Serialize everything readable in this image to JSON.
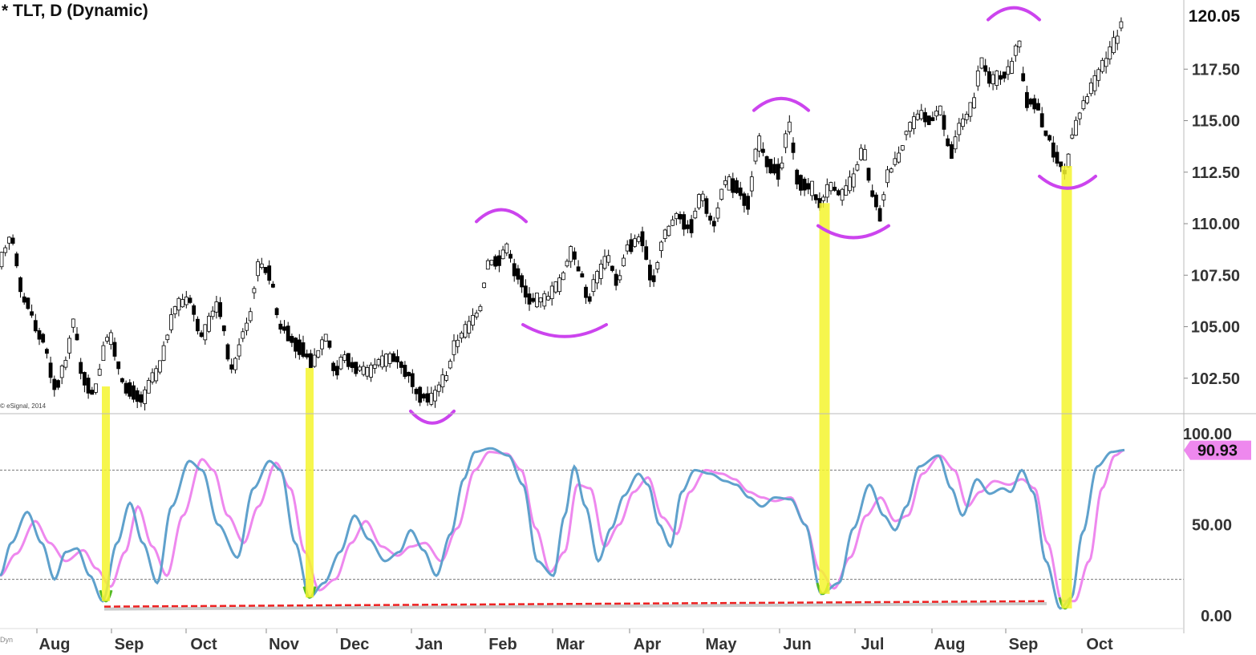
{
  "title": "* TLT, D (Dynamic)",
  "copyright": "© eSignal, 2014",
  "corner_label": "Dyn",
  "price_axis": {
    "ticks": [
      "120.05",
      "117.50",
      "115.00",
      "112.50",
      "110.00",
      "107.50",
      "105.00",
      "102.50"
    ],
    "values": [
      120.05,
      117.5,
      115,
      112.5,
      110,
      107.5,
      105,
      102.5
    ],
    "last_label": "120.05",
    "last_value": 120.05
  },
  "osc_axis": {
    "ticks": [
      "100.00",
      "50.00",
      "0.00"
    ],
    "values": [
      100,
      50,
      0
    ],
    "last_label": "90.93",
    "last_value": 90.93,
    "upper_level": 80,
    "lower_level": 20
  },
  "x_axis": {
    "months": [
      "Aug",
      "Sep",
      "Oct",
      "Nov",
      "Dec",
      "Jan",
      "Feb",
      "Mar",
      "Apr",
      "May",
      "Jun",
      "Jul",
      "Aug",
      "Sep",
      "Oct"
    ]
  },
  "colors": {
    "k_line": "#5fa1cc",
    "d_line": "#ee88ee",
    "highlight": "#f5f52e",
    "arc": "#cc44ee",
    "support": "#ee2222",
    "up_candle": "#ffffff",
    "down_candle": "#000000"
  },
  "chart_data": {
    "type": "candlestick",
    "symbol": "TLT",
    "interval": "D",
    "price_range": [
      100.5,
      121.2
    ],
    "price_anchors": [
      [
        0,
        108.2
      ],
      [
        14,
        109.3
      ],
      [
        31,
        106.3
      ],
      [
        52,
        104.5
      ],
      [
        70,
        102.1
      ],
      [
        82,
        103.2
      ],
      [
        92,
        105.2
      ],
      [
        104,
        102.5
      ],
      [
        116,
        101.8
      ],
      [
        136,
        104.5
      ],
      [
        158,
        102.0
      ],
      [
        178,
        101.5
      ],
      [
        192,
        102.6
      ],
      [
        224,
        106.1
      ],
      [
        236,
        106.3
      ],
      [
        252,
        104.6
      ],
      [
        272,
        106.0
      ],
      [
        290,
        103.0
      ],
      [
        308,
        105.0
      ],
      [
        324,
        108.0
      ],
      [
        336,
        107.6
      ],
      [
        350,
        105.0
      ],
      [
        374,
        104.0
      ],
      [
        390,
        103.3
      ],
      [
        408,
        104.5
      ],
      [
        418,
        102.8
      ],
      [
        430,
        103.5
      ],
      [
        444,
        103.0
      ],
      [
        460,
        102.8
      ],
      [
        474,
        103.3
      ],
      [
        492,
        103.5
      ],
      [
        510,
        102.7
      ],
      [
        522,
        101.7
      ],
      [
        538,
        101.5
      ],
      [
        556,
        102.5
      ],
      [
        568,
        104.1
      ],
      [
        580,
        104.8
      ],
      [
        596,
        105.6
      ],
      [
        610,
        108.1
      ],
      [
        622,
        108.2
      ],
      [
        632,
        108.8
      ],
      [
        644,
        107.6
      ],
      [
        662,
        106.3
      ],
      [
        680,
        106.3
      ],
      [
        696,
        107.0
      ],
      [
        714,
        108.6
      ],
      [
        724,
        107.6
      ],
      [
        734,
        106.3
      ],
      [
        744,
        107.4
      ],
      [
        758,
        108.3
      ],
      [
        770,
        107.2
      ],
      [
        784,
        108.9
      ],
      [
        800,
        109.3
      ],
      [
        814,
        107.3
      ],
      [
        830,
        109.5
      ],
      [
        845,
        110.4
      ],
      [
        860,
        109.8
      ],
      [
        875,
        111.3
      ],
      [
        890,
        110.0
      ],
      [
        905,
        112.0
      ],
      [
        918,
        111.8
      ],
      [
        932,
        111.0
      ],
      [
        946,
        113.9
      ],
      [
        960,
        112.8
      ],
      [
        972,
        112.5
      ],
      [
        984,
        114.7
      ],
      [
        996,
        112.0
      ],
      [
        1010,
        111.8
      ],
      [
        1022,
        111.0
      ],
      [
        1036,
        111.8
      ],
      [
        1050,
        111.4
      ],
      [
        1062,
        112.0
      ],
      [
        1076,
        113.5
      ],
      [
        1090,
        111.3
      ],
      [
        1098,
        110.4
      ],
      [
        1106,
        112.3
      ],
      [
        1120,
        113.2
      ],
      [
        1134,
        114.7
      ],
      [
        1148,
        115.3
      ],
      [
        1160,
        115.0
      ],
      [
        1172,
        115.5
      ],
      [
        1186,
        113.5
      ],
      [
        1200,
        114.9
      ],
      [
        1212,
        115.6
      ],
      [
        1224,
        117.8
      ],
      [
        1236,
        117.0
      ],
      [
        1248,
        117.1
      ],
      [
        1260,
        117.5
      ],
      [
        1270,
        118.8
      ],
      [
        1280,
        116.0
      ],
      [
        1292,
        115.8
      ],
      [
        1306,
        114.3
      ],
      [
        1318,
        113.2
      ],
      [
        1328,
        112.5
      ],
      [
        1340,
        114.6
      ],
      [
        1352,
        115.8
      ],
      [
        1364,
        116.8
      ],
      [
        1376,
        117.7
      ],
      [
        1390,
        118.7
      ],
      [
        1402,
        120.0
      ]
    ],
    "oscillator": {
      "name": "Stochastic",
      "range": [
        0,
        100
      ],
      "levels": [
        20,
        80
      ],
      "k_anchors": [
        [
          0,
          22
        ],
        [
          14,
          40
        ],
        [
          34,
          57
        ],
        [
          52,
          40
        ],
        [
          68,
          20
        ],
        [
          82,
          35
        ],
        [
          96,
          37
        ],
        [
          112,
          22
        ],
        [
          128,
          8
        ],
        [
          146,
          40
        ],
        [
          162,
          62
        ],
        [
          178,
          40
        ],
        [
          196,
          18
        ],
        [
          214,
          60
        ],
        [
          236,
          85
        ],
        [
          252,
          80
        ],
        [
          272,
          50
        ],
        [
          296,
          32
        ],
        [
          316,
          70
        ],
        [
          336,
          85
        ],
        [
          350,
          80
        ],
        [
          368,
          40
        ],
        [
          386,
          10
        ],
        [
          404,
          18
        ],
        [
          424,
          35
        ],
        [
          442,
          55
        ],
        [
          460,
          42
        ],
        [
          480,
          30
        ],
        [
          498,
          35
        ],
        [
          512,
          47
        ],
        [
          528,
          36
        ],
        [
          544,
          22
        ],
        [
          562,
          45
        ],
        [
          578,
          75
        ],
        [
          592,
          90
        ],
        [
          612,
          92
        ],
        [
          634,
          88
        ],
        [
          652,
          72
        ],
        [
          670,
          30
        ],
        [
          690,
          22
        ],
        [
          704,
          55
        ],
        [
          716,
          82
        ],
        [
          730,
          60
        ],
        [
          746,
          30
        ],
        [
          762,
          48
        ],
        [
          778,
          66
        ],
        [
          796,
          78
        ],
        [
          808,
          72
        ],
        [
          822,
          50
        ],
        [
          836,
          38
        ],
        [
          850,
          68
        ],
        [
          866,
          80
        ],
        [
          886,
          78
        ],
        [
          904,
          74
        ],
        [
          918,
          72
        ],
        [
          934,
          65
        ],
        [
          950,
          60
        ],
        [
          966,
          65
        ],
        [
          986,
          64
        ],
        [
          1004,
          50
        ],
        [
          1024,
          12
        ],
        [
          1046,
          18
        ],
        [
          1064,
          48
        ],
        [
          1084,
          72
        ],
        [
          1102,
          55
        ],
        [
          1116,
          47
        ],
        [
          1130,
          60
        ],
        [
          1146,
          82
        ],
        [
          1170,
          88
        ],
        [
          1186,
          70
        ],
        [
          1200,
          55
        ],
        [
          1218,
          75
        ],
        [
          1234,
          67
        ],
        [
          1250,
          70
        ],
        [
          1260,
          68
        ],
        [
          1274,
          80
        ],
        [
          1288,
          68
        ],
        [
          1304,
          30
        ],
        [
          1322,
          4
        ],
        [
          1336,
          10
        ],
        [
          1350,
          46
        ],
        [
          1368,
          82
        ],
        [
          1386,
          90
        ],
        [
          1402,
          91
        ]
      ],
      "d_anchors": [
        [
          0,
          22
        ],
        [
          20,
          34
        ],
        [
          44,
          52
        ],
        [
          62,
          40
        ],
        [
          82,
          30
        ],
        [
          104,
          36
        ],
        [
          120,
          26
        ],
        [
          138,
          16
        ],
        [
          156,
          35
        ],
        [
          172,
          60
        ],
        [
          190,
          38
        ],
        [
          208,
          22
        ],
        [
          228,
          55
        ],
        [
          252,
          86
        ],
        [
          266,
          80
        ],
        [
          284,
          55
        ],
        [
          304,
          40
        ],
        [
          322,
          60
        ],
        [
          344,
          84
        ],
        [
          362,
          70
        ],
        [
          380,
          35
        ],
        [
          398,
          14
        ],
        [
          418,
          20
        ],
        [
          438,
          40
        ],
        [
          456,
          52
        ],
        [
          476,
          38
        ],
        [
          496,
          33
        ],
        [
          512,
          38
        ],
        [
          530,
          40
        ],
        [
          550,
          30
        ],
        [
          570,
          48
        ],
        [
          592,
          80
        ],
        [
          610,
          90
        ],
        [
          632,
          89
        ],
        [
          650,
          80
        ],
        [
          668,
          48
        ],
        [
          686,
          24
        ],
        [
          704,
          35
        ],
        [
          720,
          72
        ],
        [
          736,
          70
        ],
        [
          754,
          38
        ],
        [
          772,
          50
        ],
        [
          790,
          68
        ],
        [
          808,
          76
        ],
        [
          826,
          54
        ],
        [
          844,
          45
        ],
        [
          860,
          68
        ],
        [
          880,
          80
        ],
        [
          900,
          78
        ],
        [
          916,
          75
        ],
        [
          934,
          68
        ],
        [
          950,
          65
        ],
        [
          966,
          63
        ],
        [
          986,
          65
        ],
        [
          1004,
          50
        ],
        [
          1022,
          25
        ],
        [
          1040,
          15
        ],
        [
          1060,
          32
        ],
        [
          1080,
          55
        ],
        [
          1098,
          65
        ],
        [
          1116,
          52
        ],
        [
          1132,
          55
        ],
        [
          1150,
          78
        ],
        [
          1172,
          88
        ],
        [
          1190,
          80
        ],
        [
          1206,
          60
        ],
        [
          1222,
          68
        ],
        [
          1240,
          74
        ],
        [
          1258,
          72
        ],
        [
          1274,
          75
        ],
        [
          1290,
          70
        ],
        [
          1306,
          40
        ],
        [
          1324,
          8
        ],
        [
          1340,
          8
        ],
        [
          1358,
          30
        ],
        [
          1374,
          70
        ],
        [
          1390,
          88
        ],
        [
          1402,
          91
        ]
      ]
    },
    "oscillator_lows": [
      {
        "x": 132,
        "value": 8
      },
      {
        "x": 386,
        "value": 10
      },
      {
        "x": 1026,
        "value": 12
      },
      {
        "x": 1328,
        "value": 4
      }
    ],
    "highlight_bars": [
      {
        "x": 132,
        "value_from": 8,
        "price_to": 102.1
      },
      {
        "x": 386,
        "value_from": 10,
        "price_to": 103.0
      },
      {
        "x": 1028,
        "value_from": 12,
        "price_to": 111.0
      },
      {
        "x": 1330,
        "value_from": 4,
        "price_to": 112.8
      }
    ],
    "support_line": {
      "x_from": 130,
      "x_to": 1305,
      "value_from": 5,
      "value_to": 8
    },
    "arcs": [
      {
        "type": "top",
        "x_from": 594,
        "x_to": 656,
        "price": 110.4
      },
      {
        "type": "top",
        "x_from": 940,
        "x_to": 1008,
        "price": 115.8
      },
      {
        "type": "top",
        "x_from": 1232,
        "x_to": 1296,
        "price": 120.2
      },
      {
        "type": "bottom",
        "x_from": 512,
        "x_to": 566,
        "price": 100.6
      },
      {
        "type": "bottom",
        "x_from": 652,
        "x_to": 756,
        "price": 104.8
      },
      {
        "type": "bottom",
        "x_from": 1020,
        "x_to": 1108,
        "price": 109.6
      },
      {
        "type": "bottom",
        "x_from": 1296,
        "x_to": 1366,
        "price": 112.0
      }
    ]
  }
}
